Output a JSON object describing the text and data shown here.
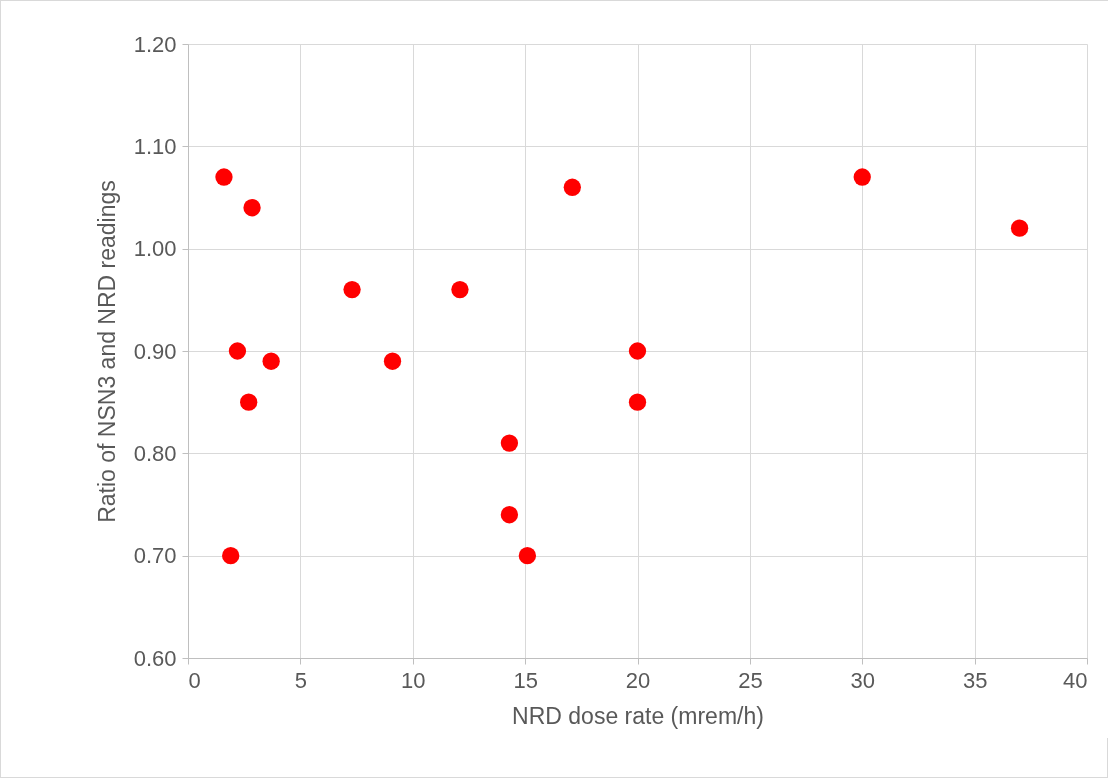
{
  "chart_data": {
    "type": "scatter",
    "xlabel": "NRD dose rate (mrem/h)",
    "ylabel": "Ratio of NSN3 and NRD readings",
    "x": [
      1.6,
      2.85,
      2.2,
      3.7,
      2.7,
      1.9,
      7.3,
      9.1,
      12.1,
      14.3,
      14.3,
      15.1,
      17.1,
      20,
      20,
      30,
      37
    ],
    "series": [
      {
        "color": "#ff0000",
        "values": [
          1.07,
          1.04,
          0.9,
          0.89,
          0.85,
          0.7,
          0.96,
          0.89,
          0.96,
          0.81,
          0.74,
          0.7,
          1.06,
          0.9,
          0.85,
          1.07,
          1.02
        ]
      }
    ],
    "xlim": [
      0,
      40
    ],
    "xticks": [
      0,
      5,
      10,
      15,
      20,
      25,
      30,
      35,
      40
    ],
    "ylim": [
      0.6,
      1.2
    ],
    "yticks": [
      {
        "value": 0.6,
        "label": "0.60"
      },
      {
        "value": 0.7,
        "label": "0.70"
      },
      {
        "value": 0.8,
        "label": "0.80"
      },
      {
        "value": 0.9,
        "label": "0.90"
      },
      {
        "value": 1.0,
        "label": "1.00"
      },
      {
        "value": 1.1,
        "label": "1.10"
      },
      {
        "value": 1.2,
        "label": "1.20"
      }
    ],
    "grid": true,
    "marker": "circle"
  }
}
